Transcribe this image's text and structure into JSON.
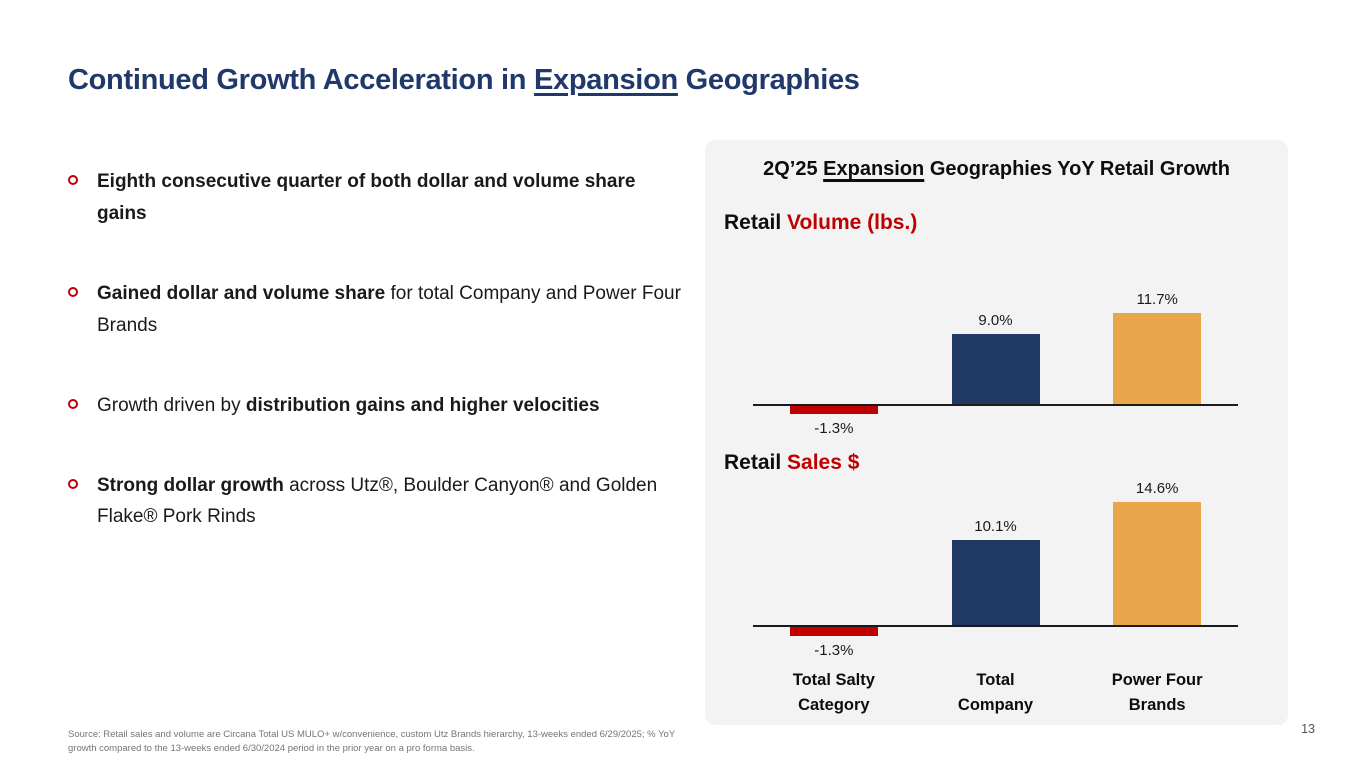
{
  "slide": {
    "title": {
      "prefix": "Continued Growth Acceleration in ",
      "underlined": "Expansion",
      "suffix": " Geographies"
    },
    "footer": "Source: Retail sales and volume are Circana Total US MULO+ w/convenience, custom Utz Brands hierarchy, 13-weeks ended 6/29/2025; % YoY growth compared to the 13-weeks ended 6/30/2024 period in the prior year on a pro forma basis.",
    "page_number": "13"
  },
  "bullets": [
    {
      "segments": [
        {
          "text": "Eighth consecutive quarter of both dollar and volume share gains",
          "bold": true
        }
      ]
    },
    {
      "segments": [
        {
          "text": "Gained dollar and volume share",
          "bold": true
        },
        {
          "text": " for total Company and Power Four Brands",
          "bold": false
        }
      ]
    },
    {
      "segments": [
        {
          "text": "Growth driven by ",
          "bold": false
        },
        {
          "text": "distribution gains and higher velocities",
          "bold": true
        }
      ]
    },
    {
      "segments": [
        {
          "text": "Strong dollar growth",
          "bold": true
        },
        {
          "text": " across Utz®, Boulder Canyon® and Golden Flake® Pork Rinds",
          "bold": false
        }
      ]
    }
  ],
  "panel": {
    "title": {
      "prefix": "2Q’25 ",
      "underlined": "Expansion",
      "suffix": " Geographies YoY Retail Growth"
    }
  },
  "colors": {
    "title_navy": "#21386B",
    "accent_red": "#C00000",
    "bar_navy": "#1F3864",
    "bar_orange": "#EAA64B",
    "panel_bg": "#F3F3F4"
  },
  "chart_data": [
    {
      "type": "bar",
      "title": {
        "black": "Retail ",
        "red": "Volume (lbs.)"
      },
      "categories": [
        "Total Salty Category",
        "Total Company",
        "Power Four Brands"
      ],
      "values": [
        -1.3,
        9.0,
        11.7
      ],
      "value_labels": [
        "-1.3%",
        "9.0%",
        "11.7%"
      ],
      "bar_colors": [
        "#C00000",
        "#1F3864",
        "#EAA64B"
      ],
      "ylim": [
        -2,
        13
      ],
      "grid": false,
      "legend": false
    },
    {
      "type": "bar",
      "title": {
        "black": "Retail ",
        "red": "Sales $"
      },
      "categories": [
        "Total Salty Category",
        "Total Company",
        "Power Four Brands"
      ],
      "values": [
        -1.3,
        10.1,
        14.6
      ],
      "value_labels": [
        "-1.3%",
        "10.1%",
        "14.6%"
      ],
      "bar_colors": [
        "#C00000",
        "#1F3864",
        "#EAA64B"
      ],
      "ylim": [
        -2,
        16
      ],
      "grid": false,
      "legend": false
    }
  ],
  "category_labels": [
    [
      "Total Salty",
      "Category"
    ],
    [
      "Total",
      "Company"
    ],
    [
      "Power Four",
      "Brands"
    ]
  ]
}
